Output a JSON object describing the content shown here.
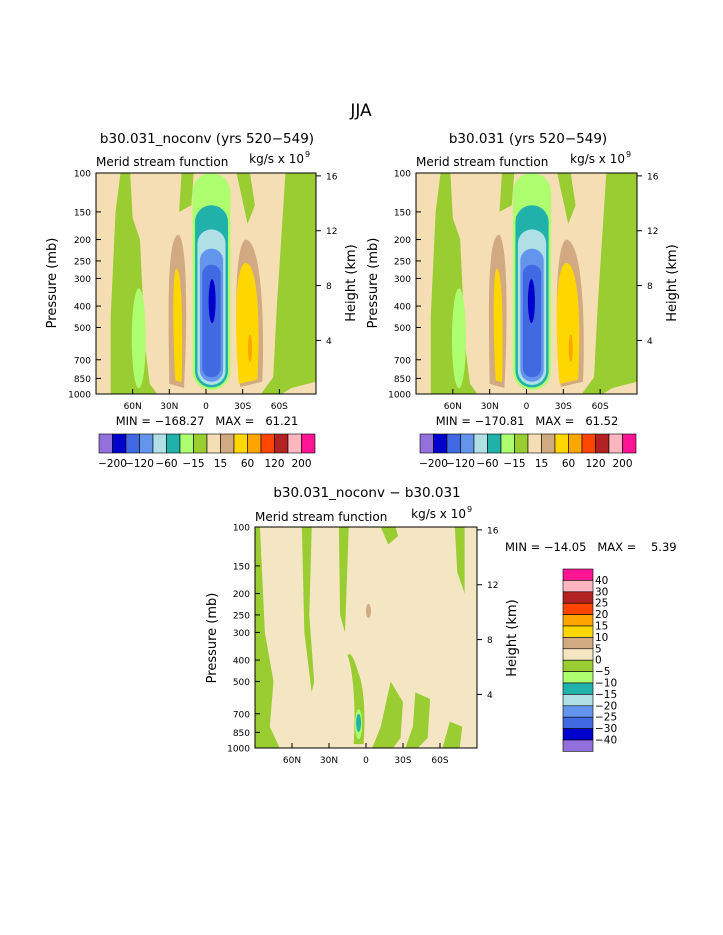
{
  "figure": {
    "title": "JJA"
  },
  "palette": {
    "main": [
      "#9370db",
      "#0000cd",
      "#4169e1",
      "#6495ed",
      "#b0e0e6",
      "#20b2aa",
      "#adff6f",
      "#9acd32",
      "#f5deb3",
      "#d2aa82",
      "#ffd700",
      "#ffa500",
      "#ff4500",
      "#b22222",
      "#ffb6c1",
      "#ff1493"
    ],
    "diff": [
      "#9370db",
      "#0000cd",
      "#4169e1",
      "#6495ed",
      "#b0e0e6",
      "#20b2aa",
      "#adff6f",
      "#9acd32",
      "#f5e6c3",
      "#d2aa82",
      "#ffd700",
      "#ffa500",
      "#ff4500",
      "#b22222",
      "#ffb6c1",
      "#ff1493"
    ]
  },
  "chart_data": [
    {
      "type": "contour",
      "id": "noconv",
      "title": "b30.031_noconv (yrs 520−549)",
      "subtitle": "Merid stream function",
      "units_base": "kg/s x 10",
      "units_exp": "9",
      "ylabel": "Pressure (mb)",
      "ylabel_right": "Height (km)",
      "x_ticks": [
        "60N",
        "30N",
        "0",
        "30S",
        "60S"
      ],
      "x_tick_lat": [
        60,
        30,
        0,
        -30,
        -60
      ],
      "y_ticks": [
        "100",
        "150",
        "200",
        "250",
        "300",
        "400",
        "500",
        "700",
        "850",
        "1000"
      ],
      "y_tick_p": [
        100,
        150,
        200,
        250,
        300,
        400,
        500,
        700,
        850,
        1000
      ],
      "right_ticks": [
        "16",
        "12",
        "8",
        "4"
      ],
      "right_tick_km": [
        16,
        12,
        8,
        4
      ],
      "stats": "MIN = −168.27   MAX =   61.21",
      "min": -168.27,
      "max": 61.21,
      "colorbar_labels": [
        "−200",
        "−120",
        "−60",
        "−15",
        "15",
        "60",
        "120",
        "200"
      ]
    },
    {
      "type": "contour",
      "id": "control",
      "title": "b30.031 (yrs 520−549)",
      "subtitle": "Merid stream function",
      "units_base": "kg/s x 10",
      "units_exp": "9",
      "ylabel": "Pressure (mb)",
      "ylabel_right": "Height (km)",
      "x_ticks": [
        "60N",
        "30N",
        "0",
        "30S",
        "60S"
      ],
      "x_tick_lat": [
        60,
        30,
        0,
        -30,
        -60
      ],
      "y_ticks": [
        "100",
        "150",
        "200",
        "250",
        "300",
        "400",
        "500",
        "700",
        "850",
        "1000"
      ],
      "y_tick_p": [
        100,
        150,
        200,
        250,
        300,
        400,
        500,
        700,
        850,
        1000
      ],
      "right_ticks": [
        "16",
        "12",
        "8",
        "4"
      ],
      "right_tick_km": [
        16,
        12,
        8,
        4
      ],
      "stats": "MIN = −170.81   MAX =   61.52",
      "min": -170.81,
      "max": 61.52,
      "colorbar_labels": [
        "−200",
        "−120",
        "−60",
        "−15",
        "15",
        "60",
        "120",
        "200"
      ]
    },
    {
      "type": "contour",
      "id": "difference",
      "title": "b30.031_noconv − b30.031",
      "subtitle": "Merid stream function",
      "units_base": "kg/s x 10",
      "units_exp": "9",
      "ylabel": "Pressure (mb)",
      "ylabel_right": "Height (km)",
      "x_ticks": [
        "60N",
        "30N",
        "0",
        "30S",
        "60S"
      ],
      "x_tick_lat": [
        60,
        30,
        0,
        -30,
        -60
      ],
      "y_ticks": [
        "100",
        "150",
        "200",
        "250",
        "300",
        "400",
        "500",
        "700",
        "850",
        "1000"
      ],
      "y_tick_p": [
        100,
        150,
        200,
        250,
        300,
        400,
        500,
        700,
        850,
        1000
      ],
      "right_ticks": [
        "16",
        "12",
        "8",
        "4"
      ],
      "right_tick_km": [
        16,
        12,
        8,
        4
      ],
      "stats": "MIN = −14.05   MAX =    5.39",
      "min": -14.05,
      "max": 5.39,
      "colorbar_labels": [
        "40",
        "30",
        "25",
        "20",
        "15",
        "10",
        "5",
        "0",
        "−5",
        "−10",
        "−15",
        "−20",
        "−25",
        "−30",
        "−40"
      ]
    }
  ]
}
